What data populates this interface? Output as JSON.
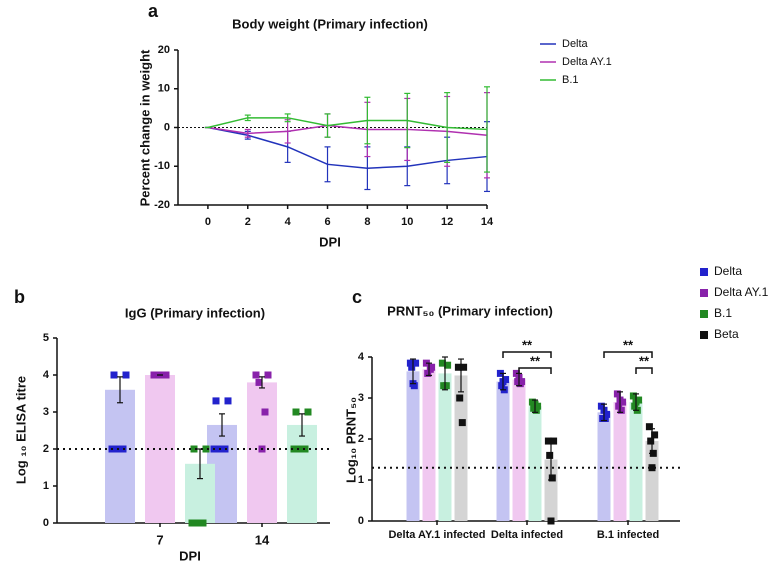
{
  "chart_data": [
    {
      "type": "line",
      "panel": "a",
      "title": "Body weight (Primary infection)",
      "xlabel": "DPI",
      "ylabel": "Percent change in weight",
      "x": [
        0,
        2,
        4,
        6,
        8,
        10,
        12,
        14
      ],
      "xlim": [
        -1.5,
        14
      ],
      "xticks": [
        0,
        2,
        4,
        6,
        8,
        10,
        12,
        14
      ],
      "ylim": [
        -20,
        20
      ],
      "yticks": [
        -20,
        -10,
        0,
        10,
        20
      ],
      "reference_line": 0,
      "series": [
        {
          "name": "Delta",
          "color": "#2233bb",
          "values": [
            0,
            -2,
            -5,
            -9.5,
            -10.5,
            -10,
            -8.5,
            -7.5
          ],
          "errors": [
            0,
            1,
            4,
            4.5,
            5.5,
            5,
            6,
            9
          ]
        },
        {
          "name": "Delta AY.1",
          "color": "#b030b0",
          "values": [
            0,
            -1.5,
            -1,
            0.5,
            -0.5,
            -0.5,
            -1,
            -2
          ],
          "errors": [
            0,
            1,
            3,
            3,
            7,
            8,
            9,
            11
          ]
        },
        {
          "name": "B.1",
          "color": "#33bb33",
          "values": [
            0,
            2.5,
            2.5,
            0.5,
            1.8,
            1.8,
            0,
            -0.5
          ],
          "errors": [
            0,
            0.7,
            1,
            3,
            6,
            7,
            9,
            11
          ]
        }
      ]
    },
    {
      "type": "bar",
      "panel": "b",
      "title": "IgG (Primary infection)",
      "xlabel": "DPI",
      "ylabel": "Log ₁₀ ELISA titre",
      "categories": [
        "7",
        "14"
      ],
      "ylim": [
        0,
        5
      ],
      "yticks": [
        0,
        1,
        2,
        3,
        4,
        5
      ],
      "reference_line": 2,
      "series": [
        {
          "color": "#c4c4f2",
          "point_color": "#2222cc",
          "values": [
            3.6,
            2.65
          ],
          "errors": [
            0.35,
            0.3
          ],
          "points": [
            [
              4,
              4,
              2,
              2,
              2,
              2
            ],
            [
              3.3,
              3.3,
              2,
              2,
              2,
              2
            ]
          ]
        },
        {
          "color": "#f0c8f0",
          "point_color": "#8822aa",
          "values": [
            4,
            3.8
          ],
          "errors": [
            0,
            0.15
          ],
          "points": [
            [
              4,
              4,
              4,
              4
            ],
            [
              4,
              4,
              3.8,
              3,
              2
            ]
          ]
        },
        {
          "color": "#c8f0e0",
          "point_color": "#228822",
          "values": [
            1.6,
            2.65
          ],
          "errors": [
            0.4,
            0.3
          ],
          "points": [
            [
              2,
              2,
              0,
              0,
              0,
              0
            ],
            [
              3,
              3,
              2,
              2,
              2,
              2
            ]
          ]
        }
      ]
    },
    {
      "type": "bar",
      "panel": "c",
      "title": "PRNT₅₀ (Primary infection)",
      "ylabel": "Log₁₀ PRNT₅₀",
      "categories": [
        "Delta AY.1 infected",
        "Delta infected",
        "B.1 infected"
      ],
      "ylim": [
        0,
        4
      ],
      "yticks": [
        0,
        1,
        2,
        3,
        4
      ],
      "reference_line": 1.3,
      "annotations": [
        "**",
        "**",
        "**",
        "**"
      ],
      "series": [
        {
          "name": "Delta",
          "color": "#c4c4f2",
          "point_color": "#2222cc",
          "values": [
            3.65,
            3.4,
            2.65
          ],
          "errors": [
            0.3,
            0.2,
            0.2
          ],
          "points": [
            [
              3.85,
              3.85,
              3.75,
              3.3,
              3.35
            ],
            [
              3.6,
              3.45,
              3.3,
              3.2,
              3.4
            ],
            [
              2.8,
              2.6,
              2.5,
              2.5,
              2.7
            ]
          ]
        },
        {
          "name": "Delta AY.1",
          "color": "#f0c8f0",
          "point_color": "#8822aa",
          "values": [
            3.7,
            3.45,
            2.9
          ],
          "errors": [
            0.15,
            0.15,
            0.25
          ],
          "points": [
            [
              3.85,
              3.75,
              3.6,
              3.7
            ],
            [
              3.6,
              3.4,
              3.4,
              3.35,
              3.5
            ],
            [
              3.1,
              2.9,
              2.8,
              2.7,
              2.95
            ]
          ]
        },
        {
          "name": "B.1",
          "color": "#c8f0e0",
          "point_color": "#228822",
          "values": [
            3.6,
            2.8,
            2.9
          ],
          "errors": [
            0.4,
            0.15,
            0.2
          ],
          "points": [
            [
              3.85,
              3.8,
              3.3,
              3.3
            ],
            [
              2.9,
              2.8,
              2.75,
              2.7,
              2.85
            ],
            [
              3.05,
              2.95,
              2.8,
              2.7,
              2.9
            ]
          ]
        },
        {
          "name": "Beta",
          "color": "#d4d4d4",
          "point_color": "#111111",
          "values": [
            3.55,
            1.5,
            1.95
          ],
          "errors": [
            0.4,
            0.5,
            0.3
          ],
          "points": [
            [
              3.75,
              3.75,
              3.0,
              2.4
            ],
            [
              1.95,
              1.95,
              1.6,
              1.05,
              0
            ],
            [
              2.3,
              2.1,
              1.95,
              1.65,
              1.3
            ]
          ]
        }
      ]
    }
  ]
}
